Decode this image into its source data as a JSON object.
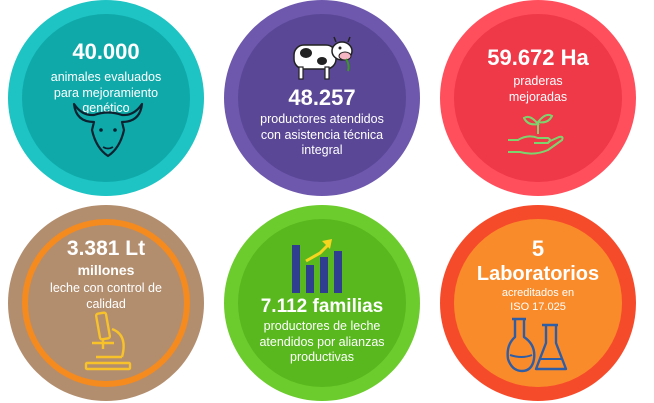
{
  "colors": {
    "teal_outer": "#1ec3c3",
    "teal_inner": "#0fa9a9",
    "purple_outer": "#6e58ad",
    "purple_inner": "#5a4796",
    "red_outer": "#ff4f5c",
    "red_inner": "#ef3848",
    "brown_outer": "#b38e6e",
    "brown_ring": "#f58a1f",
    "green_outer": "#6dcc2d",
    "green_inner": "#58b81e",
    "orange_outer": "#f64b2b",
    "orange_inner": "#fa8b2a"
  },
  "stats": [
    {
      "value": "40.000",
      "label": "animales evaluados para mejoramiento genético",
      "icon": "bull-icon"
    },
    {
      "value": "48.257",
      "label": "productores atendidos con asistencia técnica integral",
      "icon": "cow-icon"
    },
    {
      "value": "59.672 Ha",
      "label": "praderas mejoradas",
      "icon": "plant-hand-icon"
    },
    {
      "value": "3.381 Lt",
      "value2": "millones",
      "label": "leche con control de calidad",
      "icon": "microscope-icon"
    },
    {
      "value": "7.112 familias",
      "label": "productores de leche atendidos por alianzas productivas",
      "icon": "growth-chart-icon"
    },
    {
      "value": "5",
      "value2": "Laboratorios",
      "label": "acreditados en ISO 17.025",
      "icon": "flask-icon"
    }
  ]
}
